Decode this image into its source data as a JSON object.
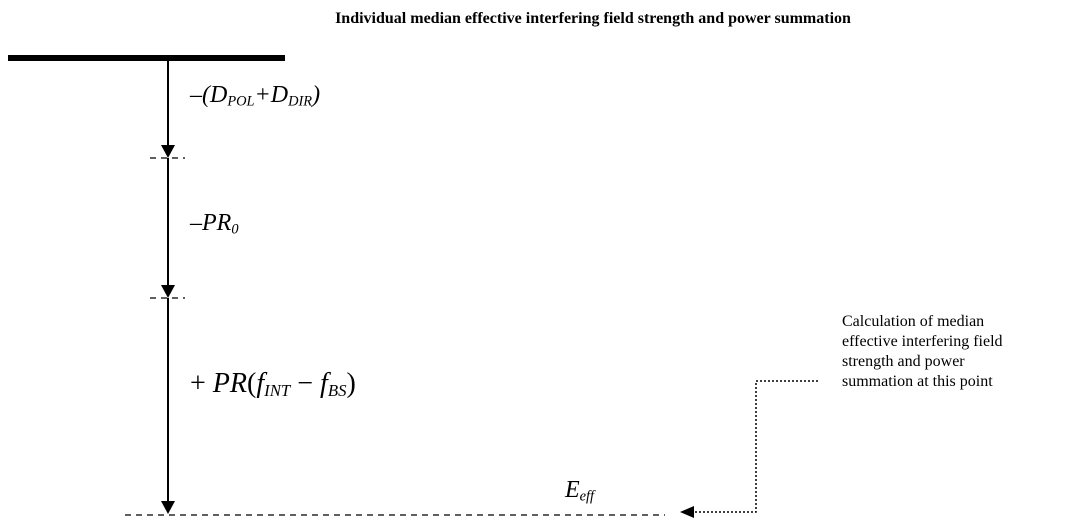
{
  "title": "Individual median effective interfering field strength and power summation",
  "labels": {
    "step1": {
      "prefix": "–(",
      "d1": "D",
      "d1_sub": "POL",
      "plus": "+",
      "d2": "D",
      "d2_sub": "DIR",
      "suffix": ")"
    },
    "step2": {
      "prefix": "–",
      "main": "PR",
      "sub": "0"
    },
    "step3": {
      "prefix": "+ ",
      "main": "PR",
      "open": "(",
      "f1": "f",
      "f1_sub": "INT",
      "minus": " − ",
      "f2": "f",
      "f2_sub": "BS",
      "close": ")"
    },
    "result": {
      "main": "E",
      "sub": "eff"
    }
  },
  "note": {
    "lines": [
      "Calculation of median",
      "effective interfering field",
      "strength and power",
      "summation at this point"
    ]
  }
}
